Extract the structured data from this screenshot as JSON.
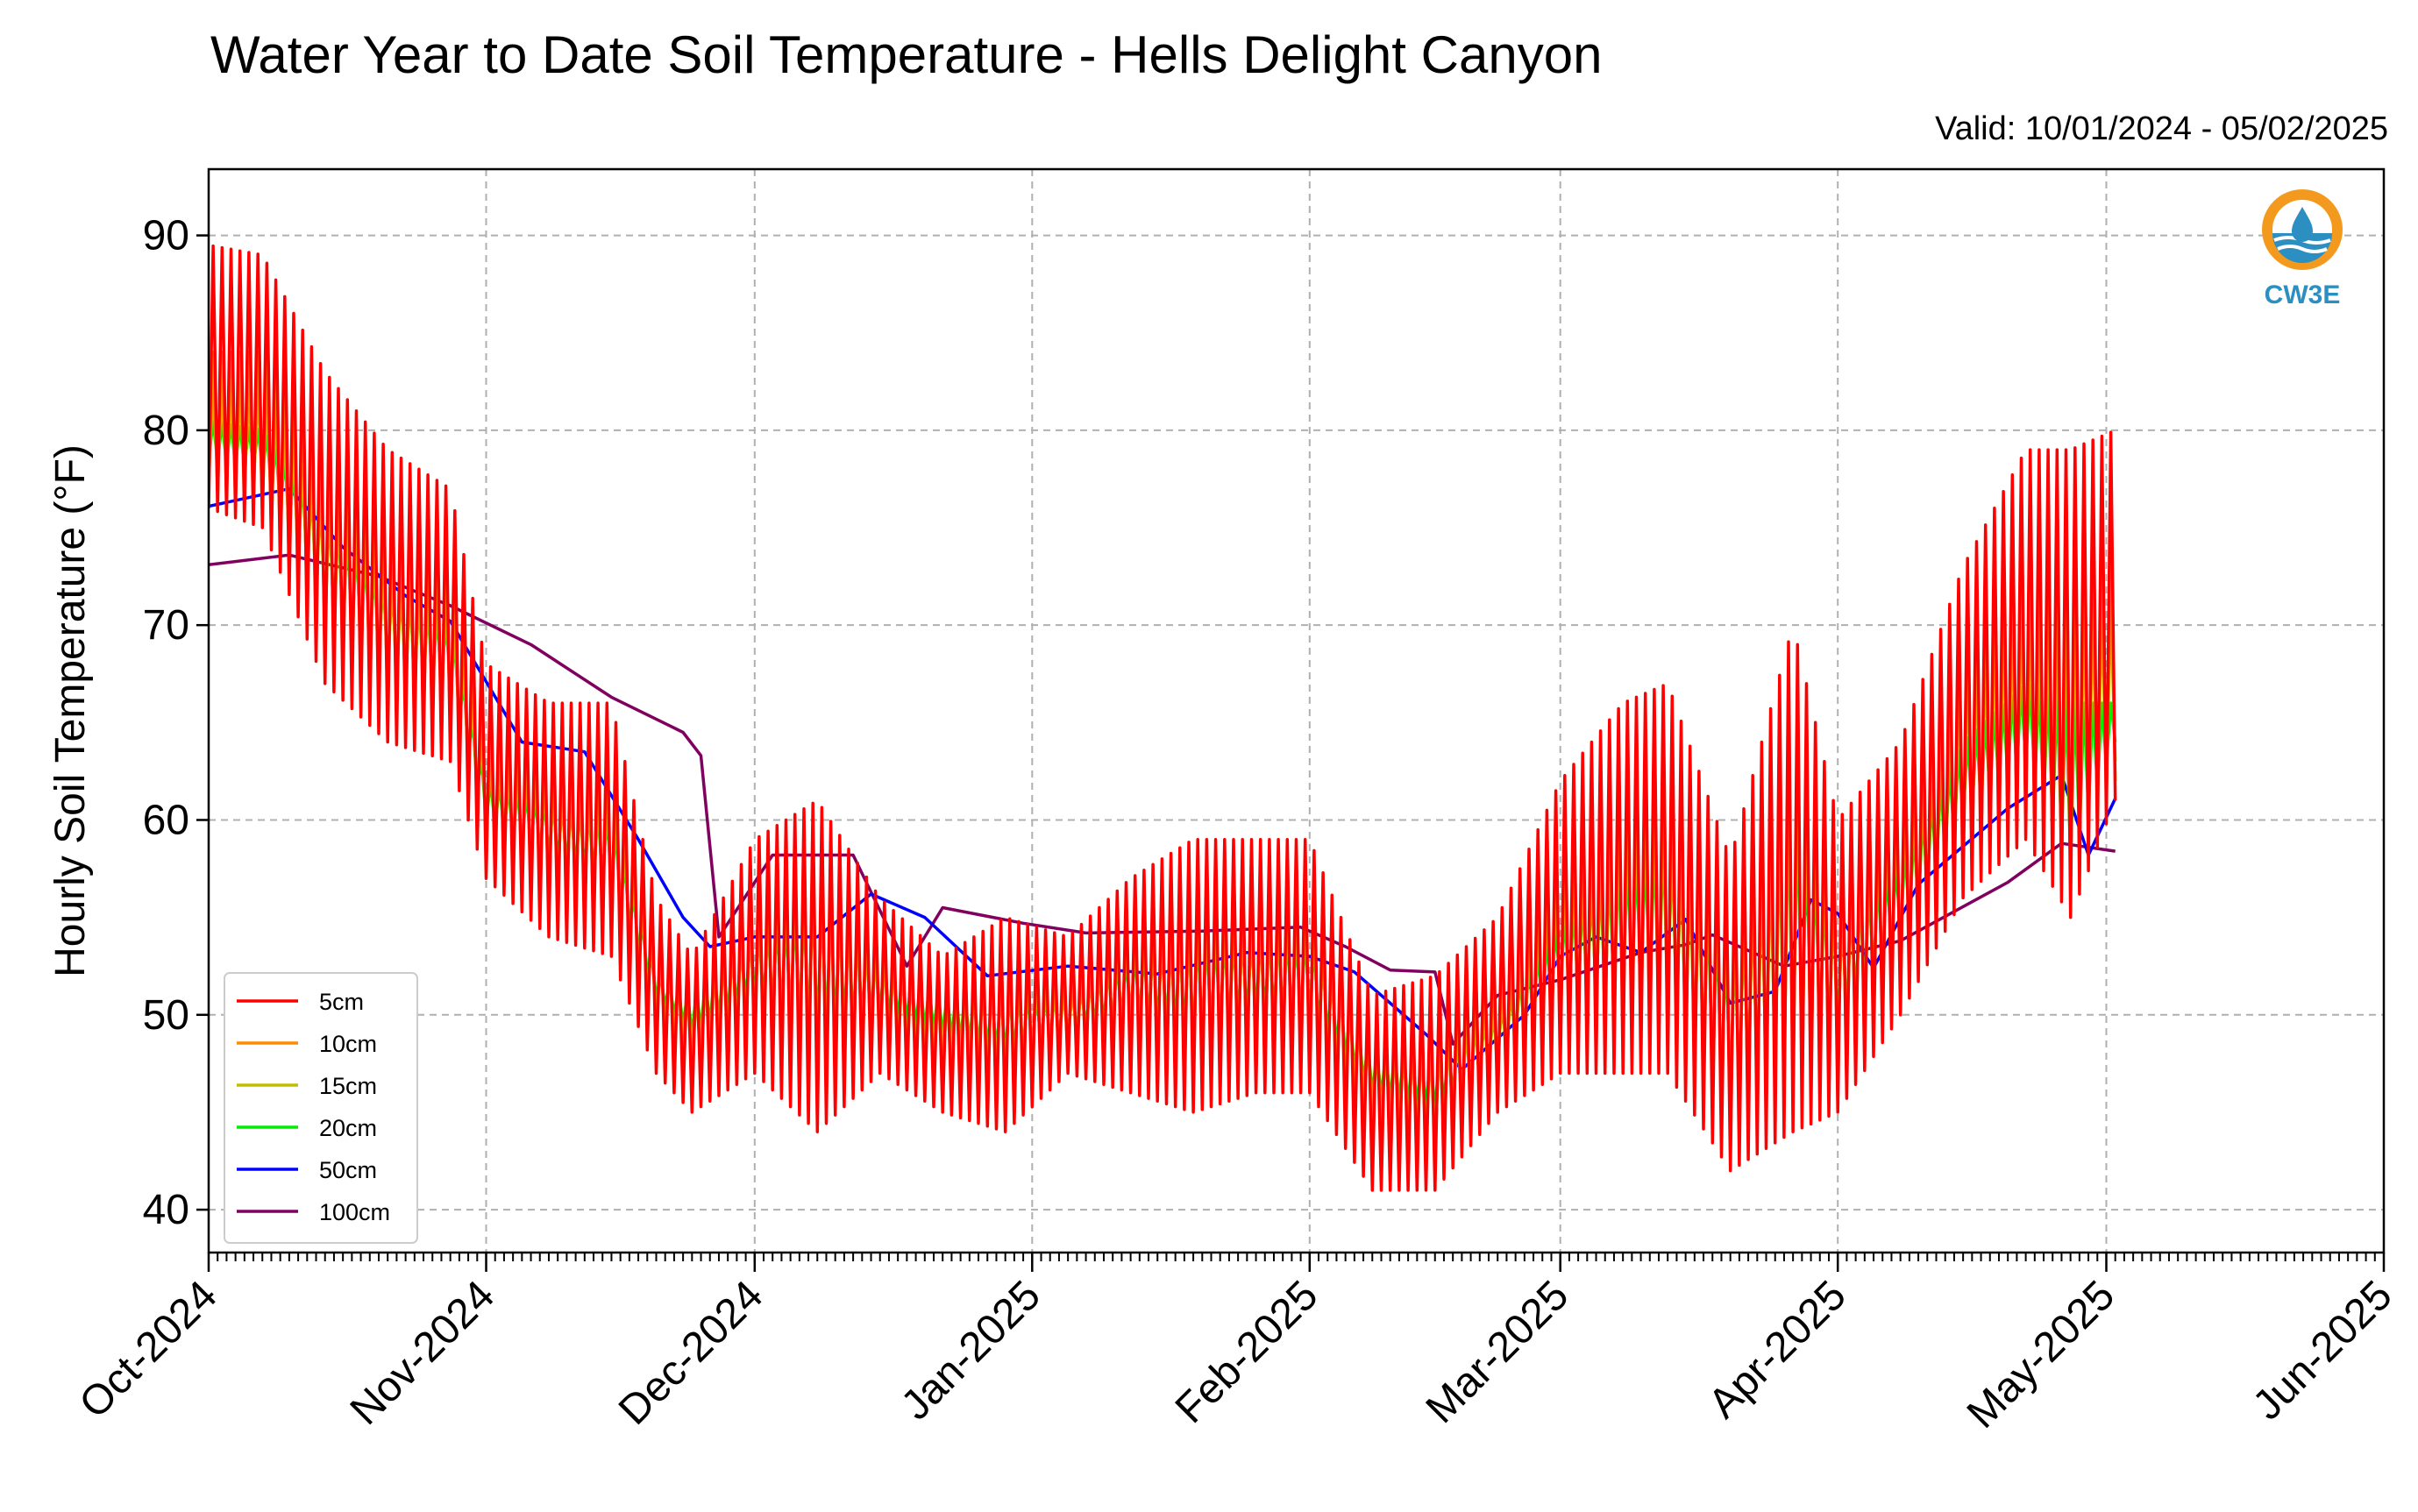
{
  "title": "Water Year to Date Soil Temperature - Hells Delight Canyon",
  "subtitle": "Valid: 10/01/2024 - 05/02/2025",
  "logo": {
    "text": "CW3E",
    "color": "#2b8fc1",
    "accent": "#f39a1e"
  },
  "chart_data": {
    "type": "line",
    "title": "Water Year to Date Soil Temperature - Hells Delight Canyon",
    "xlabel": "",
    "ylabel": "Hourly Soil Temperature ($^\\circ$F)",
    "ylabel_display": "Hourly Soil Temperature (°F)",
    "xlim": [
      "2024-10-01",
      "2025-06-01"
    ],
    "ylim": [
      37.8,
      93.4
    ],
    "grid": true,
    "legend_placement": "lower-left",
    "x_ticks": [
      "2024-10-01",
      "2024-11-01",
      "2024-12-01",
      "2025-01-01",
      "2025-02-01",
      "2025-03-01",
      "2025-04-01",
      "2025-05-01",
      "2025-06-01"
    ],
    "x_tick_labels": [
      "Oct-2024",
      "Nov-2024",
      "Dec-2024",
      "Jan-2025",
      "Feb-2025",
      "Mar-2025",
      "Apr-2025",
      "May-2025",
      "Jun-2025"
    ],
    "y_ticks": [
      40,
      50,
      60,
      70,
      80,
      90
    ],
    "y_tick_labels": [
      "40",
      "50",
      "60",
      "70",
      "80",
      "90"
    ],
    "series_sampling": "daily maximum and minimum, read at local noon and midnight",
    "series": [
      {
        "name": "5cm",
        "color": "#ff0000",
        "x": [
          "2024-10-01",
          "2024-10-07",
          "2024-10-14",
          "2024-10-21",
          "2024-10-28",
          "2024-11-01",
          "2024-11-08",
          "2024-11-15",
          "2024-11-20",
          "2024-11-24",
          "2024-12-01",
          "2024-12-08",
          "2024-12-15",
          "2024-12-22",
          "2024-12-29",
          "2025-01-05",
          "2025-01-12",
          "2025-01-19",
          "2025-01-26",
          "2025-02-01",
          "2025-02-08",
          "2025-02-15",
          "2025-02-22",
          "2025-03-01",
          "2025-03-08",
          "2025-03-13",
          "2025-03-20",
          "2025-03-27",
          "2025-04-01",
          "2025-04-08",
          "2025-04-15",
          "2025-04-22",
          "2025-04-27",
          "2025-05-02"
        ],
        "max": [
          89.5,
          89,
          83,
          79,
          77,
          68,
          66,
          66,
          56,
          53,
          59,
          61,
          56,
          53,
          55,
          54,
          57,
          59,
          59,
          59,
          51,
          52,
          55,
          62,
          66,
          67,
          58,
          70,
          60,
          64,
          73,
          79,
          79,
          80
        ],
        "min": [
          76,
          75,
          67,
          64,
          63,
          57,
          54,
          53,
          47,
          45,
          47,
          44,
          47,
          45,
          44,
          47,
          46,
          45,
          46,
          46,
          41,
          41,
          45,
          47,
          47,
          47,
          42,
          44,
          45,
          50,
          56,
          59,
          55,
          61
        ]
      },
      {
        "name": "10cm",
        "color": "#ff8c00",
        "x": [
          "2024-10-01",
          "2024-10-07",
          "2024-10-14",
          "2024-10-21",
          "2024-10-28",
          "2024-11-01",
          "2024-11-08",
          "2024-11-15",
          "2024-11-20",
          "2024-11-24",
          "2024-12-01",
          "2024-12-08",
          "2024-12-15",
          "2024-12-22",
          "2024-12-29",
          "2025-01-05",
          "2025-01-12",
          "2025-01-19",
          "2025-01-26",
          "2025-02-01",
          "2025-02-08",
          "2025-02-15",
          "2025-02-22",
          "2025-03-01",
          "2025-03-08",
          "2025-03-13",
          "2025-03-20",
          "2025-03-27",
          "2025-04-01",
          "2025-04-08",
          "2025-04-15",
          "2025-04-22",
          "2025-04-27",
          "2025-05-02"
        ],
        "max": [
          84,
          84,
          79,
          75,
          73,
          64,
          63,
          63,
          54,
          51,
          56,
          58,
          54,
          51,
          53,
          52,
          55,
          56,
          56,
          56,
          49,
          49,
          52,
          58,
          62,
          63,
          55,
          65,
          57,
          61,
          69,
          73,
          73,
          74
        ],
        "min": [
          77,
          76,
          69,
          66,
          65,
          59,
          56,
          55,
          49,
          47,
          49,
          47,
          48,
          47,
          46,
          48,
          48,
          47,
          48,
          48,
          44,
          43,
          47,
          49,
          49,
          49,
          44,
          46,
          47,
          52,
          58,
          61,
          57,
          62
        ]
      },
      {
        "name": "15cm",
        "color": "#bfbf00",
        "x": [
          "2024-10-01",
          "2024-10-07",
          "2024-10-14",
          "2024-10-21",
          "2024-10-28",
          "2024-11-01",
          "2024-11-08",
          "2024-11-15",
          "2024-11-20",
          "2024-11-24",
          "2024-12-01",
          "2024-12-08",
          "2024-12-15",
          "2024-12-22",
          "2024-12-29",
          "2025-01-05",
          "2025-01-12",
          "2025-01-19",
          "2025-01-26",
          "2025-02-01",
          "2025-02-08",
          "2025-02-15",
          "2025-02-22",
          "2025-03-01",
          "2025-03-08",
          "2025-03-13",
          "2025-03-20",
          "2025-03-27",
          "2025-04-01",
          "2025-04-08",
          "2025-04-15",
          "2025-04-22",
          "2025-04-27",
          "2025-05-02"
        ],
        "max": [
          82,
          82,
          77,
          73,
          71,
          63,
          62,
          61,
          53,
          51,
          55,
          57,
          53,
          51,
          52,
          51,
          54,
          55,
          55,
          55,
          48,
          48,
          51,
          57,
          60,
          61,
          54,
          63,
          56,
          60,
          67,
          70,
          70,
          71
        ],
        "min": [
          78,
          77,
          70,
          67,
          66,
          60,
          57,
          56,
          50,
          48,
          50,
          48,
          49,
          48,
          47,
          49,
          49,
          48,
          49,
          49,
          45,
          44,
          47,
          50,
          50,
          50,
          45,
          47,
          48,
          53,
          59,
          62,
          58,
          63
        ]
      },
      {
        "name": "20cm",
        "color": "#00ee00",
        "x": [
          "2024-10-01",
          "2024-10-07",
          "2024-10-14",
          "2024-10-21",
          "2024-10-28",
          "2024-11-01",
          "2024-11-08",
          "2024-11-15",
          "2024-11-20",
          "2024-11-24",
          "2024-12-01",
          "2024-12-08",
          "2024-12-15",
          "2024-12-22",
          "2024-12-29",
          "2025-01-05",
          "2025-01-12",
          "2025-01-19",
          "2025-01-26",
          "2025-02-01",
          "2025-02-08",
          "2025-02-15",
          "2025-02-22",
          "2025-03-01",
          "2025-03-08",
          "2025-03-13",
          "2025-03-20",
          "2025-03-27",
          "2025-04-01",
          "2025-04-08",
          "2025-04-15",
          "2025-04-22",
          "2025-04-27",
          "2025-05-02"
        ],
        "max": [
          80.5,
          80,
          76,
          72,
          70,
          62,
          61,
          60,
          52,
          51,
          54,
          56,
          53,
          51,
          51,
          51,
          53,
          54,
          54,
          54,
          48,
          48,
          50,
          55,
          58,
          59,
          53,
          61,
          55,
          58,
          64,
          67,
          66,
          66
        ],
        "min": [
          78.5,
          78,
          71,
          68,
          67,
          60,
          58,
          57,
          51,
          49,
          51,
          49,
          50,
          49,
          48,
          49,
          50,
          49,
          50,
          50,
          46,
          45,
          48,
          51,
          51,
          51,
          46,
          48,
          49,
          54,
          60,
          63,
          58,
          64
        ]
      },
      {
        "name": "50cm",
        "color": "#0000ff",
        "x": [
          "2024-10-01",
          "2024-10-10",
          "2024-10-16",
          "2024-10-23",
          "2024-10-28",
          "2024-11-05",
          "2024-11-12",
          "2024-11-18",
          "2024-11-23",
          "2024-11-26",
          "2024-12-01",
          "2024-12-08",
          "2024-12-14",
          "2024-12-20",
          "2024-12-27",
          "2025-01-05",
          "2025-01-15",
          "2025-01-25",
          "2025-02-01",
          "2025-02-06",
          "2025-02-14",
          "2025-02-18",
          "2025-02-25",
          "2025-03-01",
          "2025-03-05",
          "2025-03-10",
          "2025-03-15",
          "2025-03-20",
          "2025-03-25",
          "2025-03-29",
          "2025-04-01",
          "2025-04-05",
          "2025-04-10",
          "2025-04-20",
          "2025-04-26",
          "2025-04-29",
          "2025-05-02"
        ],
        "y": [
          76.1,
          77,
          74,
          71.5,
          70.2,
          64,
          63.5,
          59,
          55,
          53.5,
          54,
          54,
          56.2,
          55,
          52,
          52.5,
          52.1,
          53.2,
          53,
          52.2,
          49,
          47.2,
          50,
          53,
          54,
          53.2,
          54.9,
          50.6,
          51.2,
          55.9,
          55.2,
          52.4,
          56.7,
          60.6,
          62.3,
          58.2,
          61.1
        ]
      },
      {
        "name": "100cm",
        "color": "#800060",
        "x": [
          "2024-10-01",
          "2024-10-10",
          "2024-10-20",
          "2024-10-28",
          "2024-11-06",
          "2024-11-15",
          "2024-11-23",
          "2024-11-25",
          "2024-11-27",
          "2024-12-03",
          "2024-12-12",
          "2024-12-18",
          "2024-12-22",
          "2024-12-31",
          "2025-01-07",
          "2025-01-20",
          "2025-01-31",
          "2025-02-05",
          "2025-02-10",
          "2025-02-15",
          "2025-02-17",
          "2025-02-22",
          "2025-03-01",
          "2025-03-10",
          "2025-03-15",
          "2025-03-18",
          "2025-03-26",
          "2025-04-01",
          "2025-04-08",
          "2025-04-20",
          "2025-04-26",
          "2025-05-02"
        ],
        "y": [
          73.1,
          73.6,
          72.5,
          71,
          69,
          66.3,
          64.5,
          63.3,
          54,
          58.2,
          58.2,
          52.5,
          55.5,
          54.7,
          54.2,
          54.3,
          54.5,
          53.5,
          52.3,
          52.2,
          48.5,
          51,
          51.8,
          53.2,
          53.6,
          54.1,
          52.5,
          53,
          53.8,
          56.8,
          58.8,
          58.4
        ]
      }
    ]
  }
}
